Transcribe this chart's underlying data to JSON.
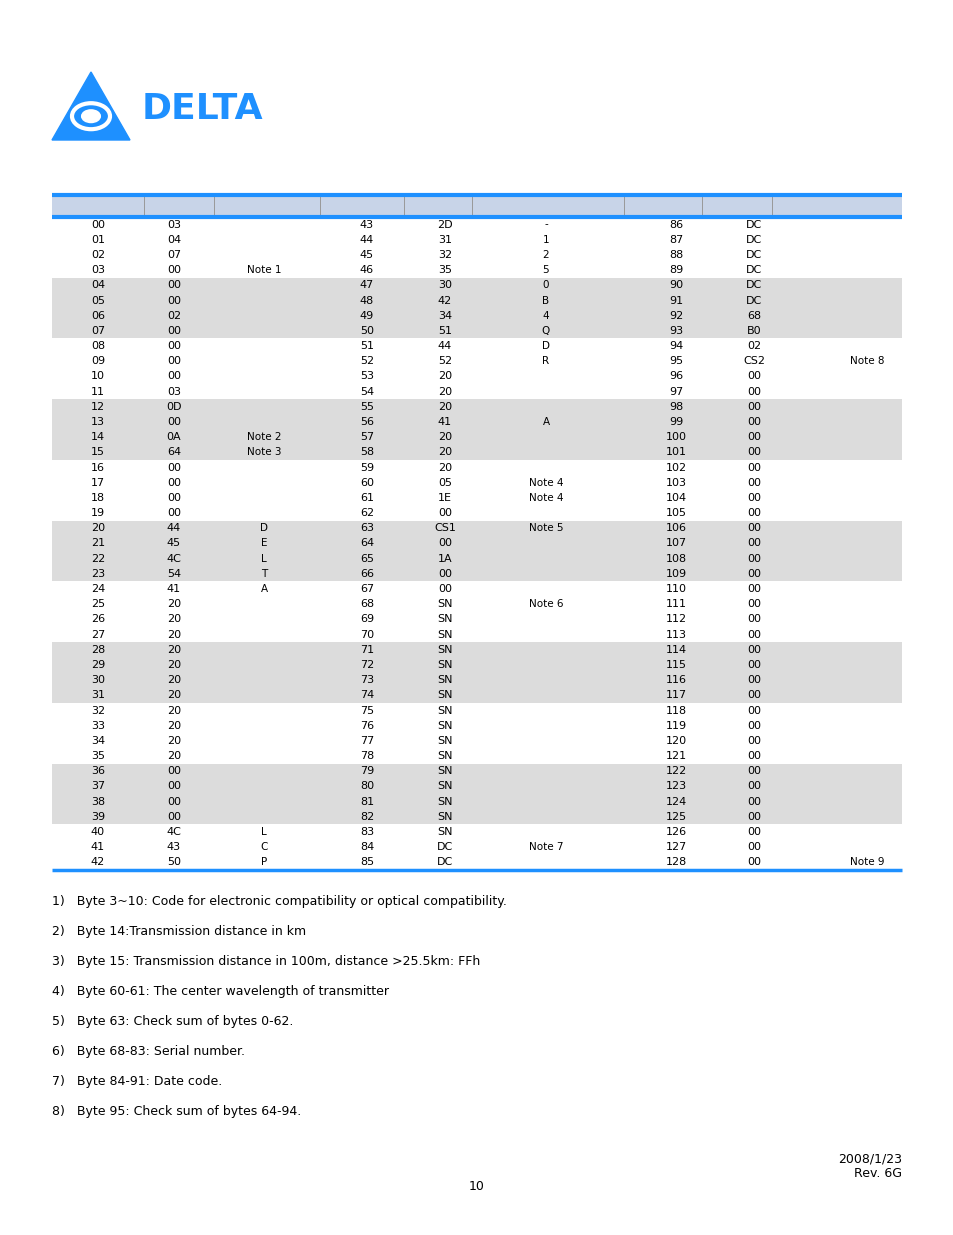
{
  "logo_color": "#1E90FF",
  "row_bg_gray": "#DCDCDC",
  "row_bg_white": "#FFFFFF",
  "header_bg": "#C8D4E8",
  "table_rows": [
    [
      "00",
      "03",
      "",
      "43",
      "2D",
      "-",
      "86",
      "DC",
      ""
    ],
    [
      "01",
      "04",
      "",
      "44",
      "31",
      "1",
      "87",
      "DC",
      ""
    ],
    [
      "02",
      "07",
      "",
      "45",
      "32",
      "2",
      "88",
      "DC",
      ""
    ],
    [
      "03",
      "00",
      "Note 1",
      "46",
      "35",
      "5",
      "89",
      "DC",
      ""
    ],
    [
      "04",
      "00",
      "",
      "47",
      "30",
      "0",
      "90",
      "DC",
      ""
    ],
    [
      "05",
      "00",
      "",
      "48",
      "42",
      "B",
      "91",
      "DC",
      ""
    ],
    [
      "06",
      "02",
      "",
      "49",
      "34",
      "4",
      "92",
      "68",
      ""
    ],
    [
      "07",
      "00",
      "",
      "50",
      "51",
      "Q",
      "93",
      "B0",
      ""
    ],
    [
      "08",
      "00",
      "",
      "51",
      "44",
      "D",
      "94",
      "02",
      ""
    ],
    [
      "09",
      "00",
      "",
      "52",
      "52",
      "R",
      "95",
      "CS2",
      "Note 8"
    ],
    [
      "10",
      "00",
      "",
      "53",
      "20",
      "",
      "96",
      "00",
      ""
    ],
    [
      "11",
      "03",
      "",
      "54",
      "20",
      "",
      "97",
      "00",
      ""
    ],
    [
      "12",
      "0D",
      "",
      "55",
      "20",
      "",
      "98",
      "00",
      ""
    ],
    [
      "13",
      "00",
      "",
      "56",
      "41",
      "A",
      "99",
      "00",
      ""
    ],
    [
      "14",
      "0A",
      "Note 2",
      "57",
      "20",
      "",
      "100",
      "00",
      ""
    ],
    [
      "15",
      "64",
      "Note 3",
      "58",
      "20",
      "",
      "101",
      "00",
      ""
    ],
    [
      "16",
      "00",
      "",
      "59",
      "20",
      "",
      "102",
      "00",
      ""
    ],
    [
      "17",
      "00",
      "",
      "60",
      "05",
      "Note 4",
      "103",
      "00",
      ""
    ],
    [
      "18",
      "00",
      "",
      "61",
      "1E",
      "Note 4",
      "104",
      "00",
      ""
    ],
    [
      "19",
      "00",
      "",
      "62",
      "00",
      "",
      "105",
      "00",
      ""
    ],
    [
      "20",
      "44",
      "D",
      "63",
      "CS1",
      "Note 5",
      "106",
      "00",
      ""
    ],
    [
      "21",
      "45",
      "E",
      "64",
      "00",
      "",
      "107",
      "00",
      ""
    ],
    [
      "22",
      "4C",
      "L",
      "65",
      "1A",
      "",
      "108",
      "00",
      ""
    ],
    [
      "23",
      "54",
      "T",
      "66",
      "00",
      "",
      "109",
      "00",
      ""
    ],
    [
      "24",
      "41",
      "A",
      "67",
      "00",
      "",
      "110",
      "00",
      ""
    ],
    [
      "25",
      "20",
      "",
      "68",
      "SN",
      "Note 6",
      "111",
      "00",
      ""
    ],
    [
      "26",
      "20",
      "",
      "69",
      "SN",
      "",
      "112",
      "00",
      ""
    ],
    [
      "27",
      "20",
      "",
      "70",
      "SN",
      "",
      "113",
      "00",
      ""
    ],
    [
      "28",
      "20",
      "",
      "71",
      "SN",
      "",
      "114",
      "00",
      ""
    ],
    [
      "29",
      "20",
      "",
      "72",
      "SN",
      "",
      "115",
      "00",
      ""
    ],
    [
      "30",
      "20",
      "",
      "73",
      "SN",
      "",
      "116",
      "00",
      ""
    ],
    [
      "31",
      "20",
      "",
      "74",
      "SN",
      "",
      "117",
      "00",
      ""
    ],
    [
      "32",
      "20",
      "",
      "75",
      "SN",
      "",
      "118",
      "00",
      ""
    ],
    [
      "33",
      "20",
      "",
      "76",
      "SN",
      "",
      "119",
      "00",
      ""
    ],
    [
      "34",
      "20",
      "",
      "77",
      "SN",
      "",
      "120",
      "00",
      ""
    ],
    [
      "35",
      "20",
      "",
      "78",
      "SN",
      "",
      "121",
      "00",
      ""
    ],
    [
      "36",
      "00",
      "",
      "79",
      "SN",
      "",
      "122",
      "00",
      ""
    ],
    [
      "37",
      "00",
      "",
      "80",
      "SN",
      "",
      "123",
      "00",
      ""
    ],
    [
      "38",
      "00",
      "",
      "81",
      "SN",
      "",
      "124",
      "00",
      ""
    ],
    [
      "39",
      "00",
      "",
      "82",
      "SN",
      "",
      "125",
      "00",
      ""
    ],
    [
      "40",
      "4C",
      "L",
      "83",
      "SN",
      "",
      "126",
      "00",
      ""
    ],
    [
      "41",
      "43",
      "C",
      "84",
      "DC",
      "Note 7",
      "127",
      "00",
      ""
    ],
    [
      "42",
      "50",
      "P",
      "85",
      "DC",
      "",
      "128",
      "00",
      "Note 9"
    ]
  ],
  "gray_rows": [
    4,
    5,
    6,
    7,
    12,
    13,
    14,
    15,
    20,
    21,
    22,
    23,
    28,
    29,
    30,
    31,
    36,
    37,
    38,
    39
  ],
  "notes": [
    "1)   Byte 3~10: Code for electronic compatibility or optical compatibility.",
    "2)   Byte 14:Transmission distance in km",
    "3)   Byte 15: Transmission distance in 100m, distance >25.5km: FFh",
    "4)   Byte 60-61: The center wavelength of transmitter",
    "5)   Byte 63: Check sum of bytes 0-62.",
    "6)   Byte 68-83: Serial number.",
    "7)   Byte 84-91: Date code.",
    "8)   Byte 95: Check sum of bytes 64-94."
  ],
  "page_num": "10",
  "date_rev": "2008/1/23\nRev. 6G",
  "font_size_table": 8.0,
  "font_size_notes": 9.0
}
